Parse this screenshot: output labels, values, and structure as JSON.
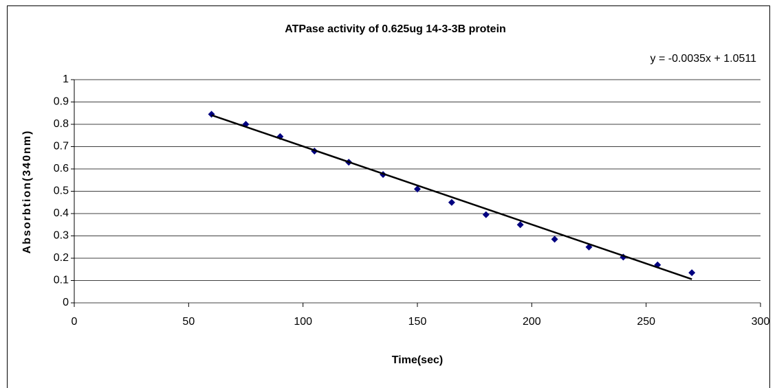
{
  "chart_data": {
    "type": "scatter",
    "title": "ATPase activity of  0.625ug 14-3-3B protein",
    "x_label": "Time(sec)",
    "y_label": "Absorbtion(340nm)",
    "series": [
      {
        "name": "Absorbtion",
        "color": "#000080",
        "x": [
          60,
          75,
          90,
          105,
          120,
          135,
          150,
          165,
          180,
          195,
          210,
          225,
          240,
          255,
          270
        ],
        "values": [
          0.845,
          0.8,
          0.745,
          0.68,
          0.63,
          0.575,
          0.51,
          0.45,
          0.395,
          0.35,
          0.285,
          0.25,
          0.205,
          0.17,
          0.135
        ]
      }
    ],
    "trendline": {
      "label": "y = -0.0035x + 1.0511",
      "slope": -0.0035,
      "intercept": 1.0511,
      "color": "#000000"
    },
    "xlim": [
      0,
      300
    ],
    "xticks": [
      0,
      50,
      100,
      150,
      200,
      250,
      300
    ],
    "ylim": [
      0,
      1
    ],
    "yticks": [
      0,
      0.1,
      0.2,
      0.3,
      0.4,
      0.5,
      0.6,
      0.7,
      0.8,
      0.9,
      1
    ],
    "grid": true
  }
}
